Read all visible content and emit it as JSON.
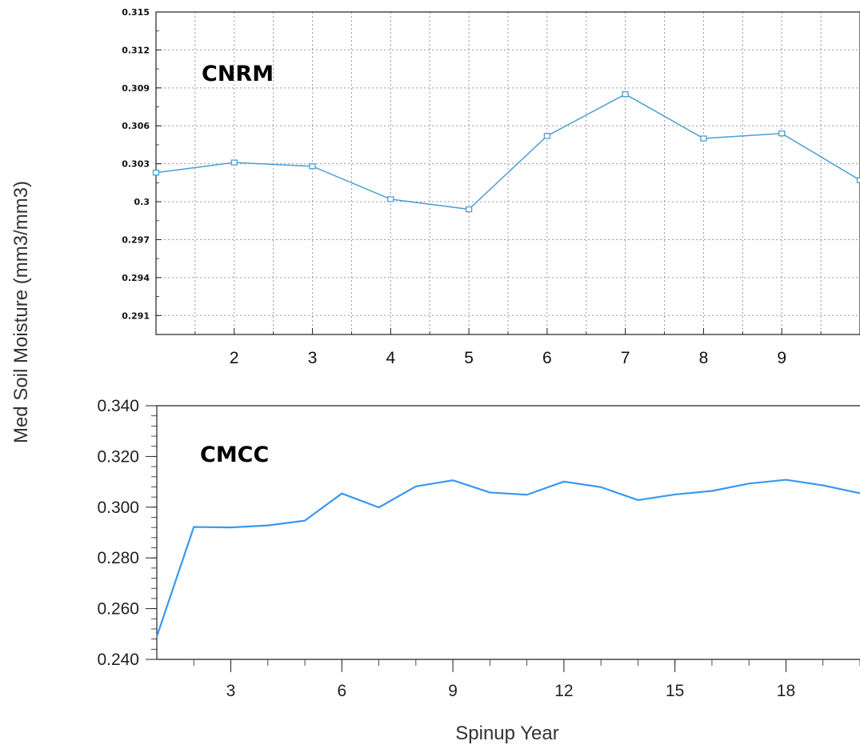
{
  "figure": {
    "shared_ylabel": "Med Soil Moisture (mm3/mm3)"
  },
  "chart_data": [
    {
      "type": "line",
      "panel_label": "CNRM",
      "x": [
        1,
        2,
        3,
        4,
        5,
        6,
        7,
        8,
        9,
        10
      ],
      "series": [
        {
          "values": [
            0.3023,
            0.3031,
            0.3028,
            0.3002,
            0.2994,
            0.3052,
            0.3085,
            0.305,
            0.3054,
            0.3017
          ]
        }
      ],
      "xlim": [
        1,
        10
      ],
      "ylim": [
        0.2895,
        0.315
      ],
      "xticks": [
        2,
        3,
        4,
        5,
        6,
        7,
        8,
        9
      ],
      "xtick_labels": [
        "2",
        "3",
        "4",
        "5",
        "6",
        "7",
        "8",
        "9"
      ],
      "yticks": [
        0.291,
        0.294,
        0.297,
        0.3,
        0.303,
        0.306,
        0.309,
        0.312,
        0.315
      ],
      "ytick_labels": [
        "0.291",
        "0.294",
        "0.297",
        "0.3",
        "0.303",
        "0.306",
        "0.309",
        "0.312",
        "0.315"
      ],
      "grid": true,
      "markers": "square",
      "line_color": "#4a9fd0"
    },
    {
      "type": "line",
      "panel_label": "CMCC",
      "x": [
        1,
        2,
        3,
        4,
        5,
        6,
        7,
        8,
        9,
        10,
        11,
        12,
        13,
        14,
        15,
        16,
        17,
        18,
        19,
        20
      ],
      "series": [
        {
          "values": [
            0.249,
            0.2922,
            0.292,
            0.2928,
            0.2947,
            0.3054,
            0.2999,
            0.3082,
            0.3106,
            0.3058,
            0.3049,
            0.3101,
            0.3079,
            0.3028,
            0.305,
            0.3064,
            0.3093,
            0.3108,
            0.3086,
            0.3055
          ]
        }
      ],
      "xlim": [
        1,
        20
      ],
      "ylim": [
        0.24,
        0.34
      ],
      "xticks": [
        3,
        6,
        9,
        12,
        15,
        18
      ],
      "xtick_labels": [
        "3",
        "6",
        "9",
        "12",
        "15",
        "18"
      ],
      "yticks": [
        0.24,
        0.26,
        0.28,
        0.3,
        0.32,
        0.34
      ],
      "ytick_labels": [
        "0.240",
        "0.260",
        "0.280",
        "0.300",
        "0.320",
        "0.340"
      ],
      "xlabel": "Spinup Year",
      "grid": false,
      "markers": "none",
      "line_color": "#3a98f0"
    }
  ]
}
